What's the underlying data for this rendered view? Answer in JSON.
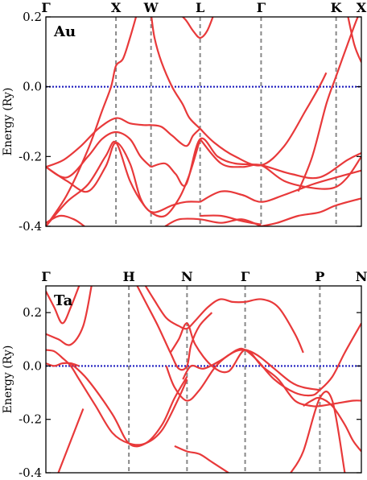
{
  "colors": {
    "band": "#e8393a",
    "fermi": "#1f1fbf",
    "kline": "#888888"
  },
  "chart_data": [
    {
      "type": "line",
      "panel_label": "Au",
      "ylabel": "Energy (Ry)",
      "ylim": [
        -0.4,
        0.2
      ],
      "yticks": [
        -0.4,
        -0.2,
        0.0,
        0.2
      ],
      "ytick_labels": [
        "-0.4",
        "-0.2",
        "0.0",
        "0.2"
      ],
      "fermi_level": 0.0,
      "kpoints": [
        {
          "label": "Γ",
          "x": 0.0,
          "line": false
        },
        {
          "label": "X",
          "x": 1.0,
          "line": true
        },
        {
          "label": "W",
          "x": 1.5,
          "line": true
        },
        {
          "label": "L",
          "x": 2.2,
          "line": true
        },
        {
          "label": "Γ",
          "x": 3.07,
          "line": true
        },
        {
          "label": "K",
          "x": 4.14,
          "line": true
        },
        {
          "label": "X",
          "x": 4.5,
          "line": false
        }
      ],
      "series": [
        {
          "x": [
            0,
            0.3,
            0.6,
            0.8,
            0.93,
            1.0,
            1.1,
            1.2,
            1.3
          ],
          "y": [
            -0.4,
            -0.31,
            -0.18,
            -0.07,
            0.0,
            0.06,
            0.08,
            0.14,
            0.21
          ]
        },
        {
          "x": [
            1.5,
            1.55,
            1.65,
            1.8,
            1.95,
            2.05,
            2.2
          ],
          "y": [
            0.21,
            0.14,
            0.07,
            0.0,
            -0.05,
            -0.09,
            -0.12
          ]
        },
        {
          "x": [
            1.9,
            2.0,
            2.1,
            2.2,
            2.3,
            2.4
          ],
          "y": [
            0.21,
            0.19,
            0.16,
            0.14,
            0.16,
            0.21
          ]
        },
        {
          "x": [
            3.6,
            3.8,
            4.0,
            4.14,
            4.3,
            4.45,
            4.5
          ],
          "y": [
            -0.3,
            -0.2,
            -0.05,
            0.03,
            0.12,
            0.2,
            0.21
          ]
        },
        {
          "x": [
            2.2,
            2.4,
            2.7,
            3.07,
            3.4,
            3.7,
            3.9,
            4.0
          ],
          "y": [
            -0.12,
            -0.16,
            -0.2,
            -0.225,
            -0.17,
            -0.07,
            0.0,
            0.04
          ]
        },
        {
          "x": [
            4.3,
            4.4,
            4.5
          ],
          "y": [
            0.21,
            0.12,
            0.07
          ]
        },
        {
          "x": [
            0,
            0.25,
            0.5,
            0.75,
            1.0,
            1.2,
            1.4,
            1.5,
            1.65,
            1.8,
            2.0,
            2.1,
            2.2
          ],
          "y": [
            -0.23,
            -0.21,
            -0.17,
            -0.12,
            -0.09,
            -0.105,
            -0.11,
            -0.11,
            -0.115,
            -0.14,
            -0.17,
            -0.14,
            -0.12
          ]
        },
        {
          "x": [
            0,
            0.3,
            0.6,
            0.8,
            1.0,
            1.2,
            1.35,
            1.5
          ],
          "y": [
            -0.23,
            -0.26,
            -0.2,
            -0.15,
            -0.13,
            -0.15,
            -0.2,
            -0.23
          ]
        },
        {
          "x": [
            1.5,
            1.7,
            1.85,
            2.0,
            2.2,
            2.45,
            2.7,
            3.07,
            3.5,
            3.9,
            4.3,
            4.5
          ],
          "y": [
            -0.23,
            -0.22,
            -0.25,
            -0.28,
            -0.15,
            -0.2,
            -0.22,
            -0.225,
            -0.25,
            -0.26,
            -0.21,
            -0.19
          ]
        },
        {
          "x": [
            0,
            0.3,
            0.6,
            0.85,
            1.0,
            1.2,
            1.35,
            1.5,
            1.7,
            1.9,
            2.05,
            2.2
          ],
          "y": [
            -0.23,
            -0.27,
            -0.3,
            -0.23,
            -0.16,
            -0.22,
            -0.32,
            -0.36,
            -0.37,
            -0.32,
            -0.25,
            -0.15
          ]
        },
        {
          "x": [
            2.2,
            2.5,
            2.8,
            3.07,
            3.4,
            3.8,
            4.1,
            4.3,
            4.5
          ],
          "y": [
            -0.15,
            -0.22,
            -0.23,
            -0.225,
            -0.27,
            -0.29,
            -0.29,
            -0.26,
            -0.2
          ]
        },
        {
          "x": [
            0,
            0.3,
            0.6,
            0.85,
            1.0,
            1.2,
            1.4,
            1.55,
            1.8,
            2.0,
            2.2
          ],
          "y": [
            -0.4,
            -0.33,
            -0.28,
            -0.2,
            -0.16,
            -0.27,
            -0.34,
            -0.36,
            -0.34,
            -0.33,
            -0.33
          ]
        },
        {
          "x": [
            2.2,
            2.5,
            2.8,
            3.07,
            3.4,
            3.8,
            4.14,
            4.5
          ],
          "y": [
            -0.33,
            -0.3,
            -0.31,
            -0.33,
            -0.31,
            -0.28,
            -0.26,
            -0.24
          ]
        },
        {
          "x": [
            0,
            0.2,
            0.4,
            0.55
          ],
          "y": [
            -0.39,
            -0.37,
            -0.38,
            -0.4
          ]
        },
        {
          "x": [
            1.7,
            1.9,
            2.2,
            2.5,
            2.8,
            3.07
          ],
          "y": [
            -0.4,
            -0.38,
            -0.38,
            -0.39,
            -0.38,
            -0.4
          ]
        },
        {
          "x": [
            3.07,
            3.3,
            3.6,
            3.9,
            4.14,
            4.5
          ],
          "y": [
            -0.4,
            -0.39,
            -0.37,
            -0.36,
            -0.34,
            -0.32
          ]
        },
        {
          "x": [
            2.2,
            2.5,
            2.8,
            3.07
          ],
          "y": [
            -0.37,
            -0.37,
            -0.385,
            -0.395
          ]
        }
      ]
    },
    {
      "type": "line",
      "panel_label": "Ta",
      "ylabel": "Energy (Ry)",
      "ylim": [
        -0.4,
        0.3
      ],
      "yticks": [
        -0.4,
        -0.2,
        0.0,
        0.2
      ],
      "ytick_labels": [
        "-0.4",
        "-0.2",
        "0.0",
        "0.2"
      ],
      "fermi_level": 0.0,
      "kpoints": [
        {
          "label": "Γ",
          "x": 0.0,
          "line": false
        },
        {
          "label": "H",
          "x": 1.0,
          "line": true
        },
        {
          "label": "N",
          "x": 1.7,
          "line": true
        },
        {
          "label": "Γ",
          "x": 2.4,
          "line": true
        },
        {
          "label": "P",
          "x": 3.3,
          "line": true
        },
        {
          "label": "N",
          "x": 3.8,
          "line": false
        }
      ],
      "series": [
        {
          "x": [
            0,
            0.1,
            0.2,
            0.3,
            0.4
          ],
          "y": [
            0.28,
            0.22,
            0.16,
            0.22,
            0.3
          ]
        },
        {
          "x": [
            0,
            0.15,
            0.3,
            0.45,
            0.55
          ],
          "y": [
            0.12,
            0.1,
            0.08,
            0.15,
            0.3
          ]
        },
        {
          "x": [
            0,
            0.1,
            0.2,
            0.3,
            0.4,
            0.6,
            0.8,
            1.0,
            1.2,
            1.4,
            1.6,
            1.7
          ],
          "y": [
            0.06,
            0.055,
            0.03,
            0.0,
            -0.05,
            -0.15,
            -0.25,
            -0.29,
            -0.29,
            -0.24,
            -0.12,
            -0.05
          ]
        },
        {
          "x": [
            0,
            0.1,
            0.2,
            0.3,
            0.4
          ],
          "y": [
            0.01,
            0.0,
            0.01,
            0.01,
            0.0
          ]
        },
        {
          "x": [
            0.3,
            0.5,
            0.8,
            1.0,
            1.2,
            1.4,
            1.55,
            1.7
          ],
          "y": [
            0.01,
            -0.05,
            -0.18,
            -0.29,
            -0.29,
            -0.22,
            -0.12,
            -0.04
          ]
        },
        {
          "x": [
            0.15,
            0.25,
            0.35,
            0.45
          ],
          "y": [
            -0.4,
            -0.32,
            -0.24,
            -0.16
          ]
        },
        {
          "x": [
            1.1,
            1.2,
            1.35,
            1.5,
            1.6,
            1.7,
            1.75,
            1.85,
            2.0
          ],
          "y": [
            0.3,
            0.24,
            0.15,
            0.05,
            -0.01,
            0.0,
            0.08,
            0.15,
            0.2
          ]
        },
        {
          "x": [
            1.2,
            1.3,
            1.45,
            1.6,
            1.7,
            1.8,
            1.95,
            2.1,
            2.25,
            2.4,
            2.6,
            2.8,
            3.0,
            3.1
          ],
          "y": [
            0.3,
            0.25,
            0.18,
            0.15,
            0.14,
            0.17,
            0.22,
            0.25,
            0.24,
            0.24,
            0.25,
            0.22,
            0.12,
            0.05
          ]
        },
        {
          "x": [
            1.5,
            1.6,
            1.7,
            1.8,
            2.0,
            2.2,
            2.4,
            2.6,
            2.8,
            3.0,
            3.2,
            3.3,
            3.5,
            3.7,
            3.8
          ],
          "y": [
            0.05,
            0.1,
            0.16,
            0.08,
            0.0,
            -0.02,
            0.06,
            0.0,
            -0.05,
            -0.13,
            -0.15,
            -0.15,
            -0.14,
            -0.13,
            -0.13
          ]
        },
        {
          "x": [
            1.45,
            1.55,
            1.7,
            1.85,
            2.05,
            2.25,
            2.4,
            2.55,
            2.75,
            2.95,
            3.1,
            3.3
          ],
          "y": [
            0.0,
            -0.08,
            -0.13,
            -0.09,
            0.0,
            0.05,
            0.06,
            0.04,
            -0.01,
            -0.06,
            -0.08,
            -0.09
          ]
        },
        {
          "x": [
            1.65,
            1.75,
            1.9,
            2.1,
            2.3,
            2.4,
            2.55,
            2.75,
            3.0,
            3.2,
            3.3,
            3.45,
            3.6,
            3.8
          ],
          "y": [
            -0.05,
            0.0,
            -0.01,
            0.02,
            0.06,
            0.06,
            0.02,
            -0.05,
            -0.1,
            -0.11,
            -0.09,
            -0.04,
            0.05,
            0.16
          ]
        },
        {
          "x": [
            1.55,
            1.7,
            1.85,
            2.0,
            2.2
          ],
          "y": [
            -0.3,
            -0.32,
            -0.33,
            -0.36,
            -0.4
          ]
        },
        {
          "x": [
            3.1,
            3.2,
            3.3,
            3.45,
            3.6,
            3.7,
            3.8
          ],
          "y": [
            -0.15,
            -0.13,
            -0.12,
            -0.15,
            -0.22,
            -0.28,
            -0.32
          ]
        },
        {
          "x": [
            2.95,
            3.1,
            3.3,
            3.45,
            3.6
          ],
          "y": [
            -0.4,
            -0.32,
            -0.12,
            -0.13,
            -0.4
          ]
        }
      ]
    }
  ]
}
